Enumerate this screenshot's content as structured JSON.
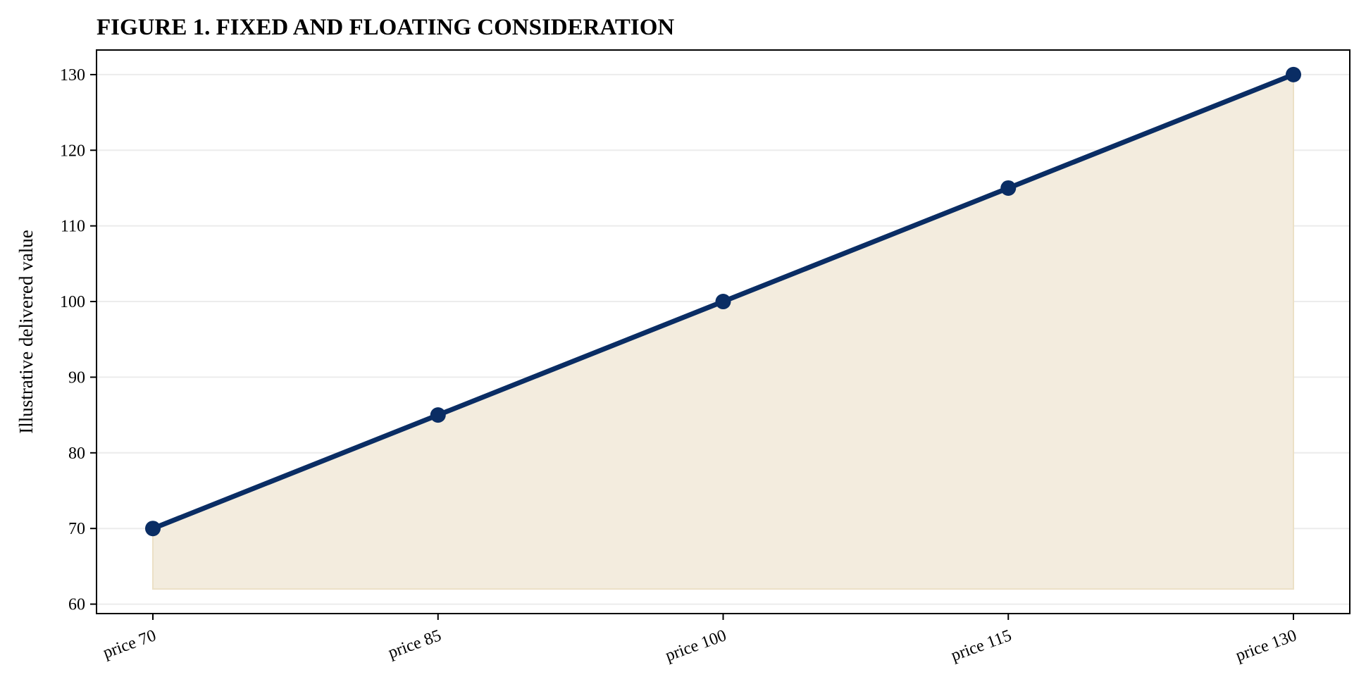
{
  "chart_data": {
    "type": "area",
    "title": "FIGURE 1. FIXED AND FLOATING CONSIDERATION",
    "xlabel": "",
    "ylabel": "Illustrative delivered value",
    "categories": [
      "price 70",
      "price 85",
      "price 100",
      "price 115",
      "price 130"
    ],
    "series": [
      {
        "values": [
          70,
          85,
          100,
          115,
          130
        ]
      }
    ],
    "fill_baseline": 62,
    "ylim": [
      58.75,
      133.25
    ],
    "yticks": [
      60,
      70,
      80,
      90,
      100,
      110,
      120,
      130
    ],
    "grid": "horizontal",
    "colors": {
      "line": "#0a2d64",
      "fill": "#f3ecde",
      "fill_edge": "#ece0c6",
      "grid": "#ececec",
      "axes": "#000000"
    }
  }
}
